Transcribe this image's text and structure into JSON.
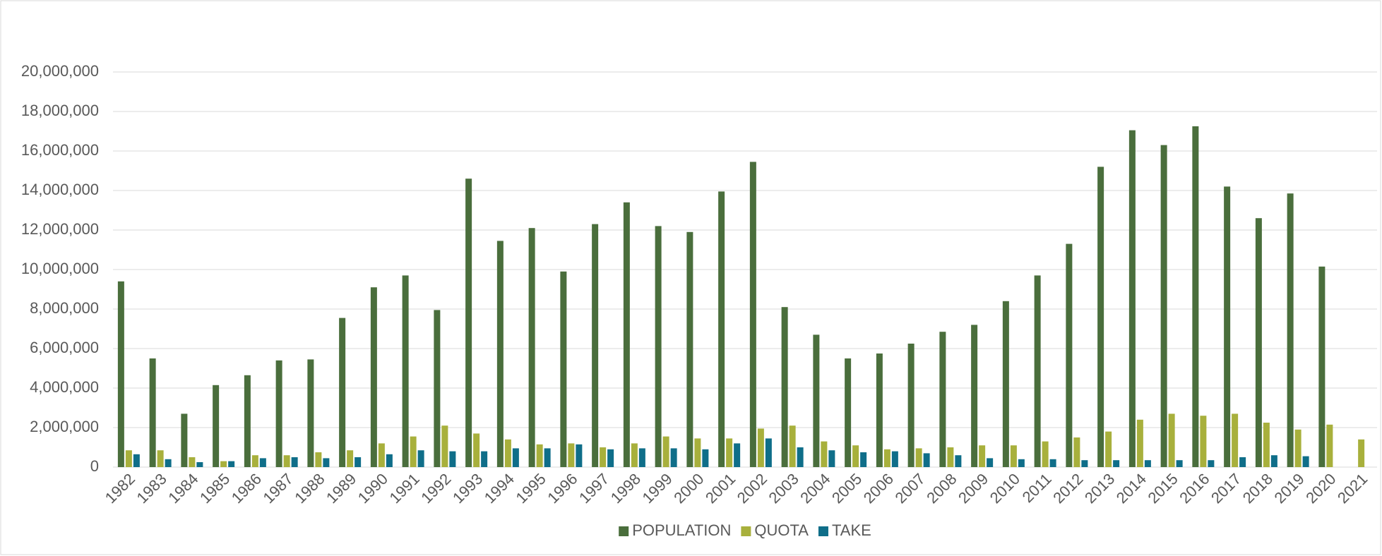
{
  "chart_data": {
    "type": "bar",
    "categories": [
      "1982",
      "1983",
      "1984",
      "1985",
      "1986",
      "1987",
      "1988",
      "1989",
      "1990",
      "1991",
      "1992",
      "1993",
      "1994",
      "1995",
      "1996",
      "1997",
      "1998",
      "1999",
      "2000",
      "2001",
      "2002",
      "2003",
      "2004",
      "2005",
      "2006",
      "2007",
      "2008",
      "2009",
      "2010",
      "2011",
      "2012",
      "2013",
      "2014",
      "2015",
      "2016",
      "2017",
      "2018",
      "2019",
      "2020",
      "2021"
    ],
    "series": [
      {
        "name": "POPULATION",
        "color": "#4a6e3c",
        "values": [
          9400000,
          5500000,
          2700000,
          4150000,
          4650000,
          5400000,
          5450000,
          7550000,
          9100000,
          9700000,
          7950000,
          14600000,
          11450000,
          12100000,
          9900000,
          12300000,
          13400000,
          12200000,
          11900000,
          13950000,
          15450000,
          8100000,
          6700000,
          5500000,
          5750000,
          6250000,
          6850000,
          7200000,
          8400000,
          9700000,
          11300000,
          15200000,
          17050000,
          16300000,
          17250000,
          14200000,
          12600000,
          13850000,
          10150000,
          null
        ]
      },
      {
        "name": "QUOTA",
        "color": "#a8b03c",
        "values": [
          850000,
          850000,
          500000,
          300000,
          600000,
          600000,
          750000,
          850000,
          1200000,
          1550000,
          2100000,
          1700000,
          1400000,
          1150000,
          1200000,
          1000000,
          1200000,
          1550000,
          1450000,
          1450000,
          1950000,
          2100000,
          1300000,
          1100000,
          900000,
          950000,
          1000000,
          1100000,
          1100000,
          1300000,
          1500000,
          1800000,
          2400000,
          2700000,
          2600000,
          2700000,
          2250000,
          1900000,
          2150000,
          1400000
        ]
      },
      {
        "name": "TAKE",
        "color": "#0f6e89",
        "values": [
          650000,
          400000,
          250000,
          300000,
          450000,
          500000,
          450000,
          500000,
          650000,
          850000,
          800000,
          800000,
          950000,
          950000,
          1150000,
          900000,
          950000,
          950000,
          900000,
          1200000,
          1450000,
          1000000,
          850000,
          750000,
          800000,
          700000,
          600000,
          450000,
          400000,
          400000,
          350000,
          350000,
          350000,
          350000,
          350000,
          500000,
          600000,
          550000,
          null,
          null
        ]
      }
    ],
    "ylim": [
      0,
      20000000
    ],
    "yticks": [
      0,
      {
        "value": 2000000,
        "label": "2,000,000"
      },
      {
        "value": 4000000,
        "label": "4,000,000"
      },
      {
        "value": 6000000,
        "label": "6,000,000"
      },
      {
        "value": 8000000,
        "label": "8,000,000"
      },
      {
        "value": 10000000,
        "label": "10,000,000"
      },
      {
        "value": 12000000,
        "label": "12,000,000"
      },
      {
        "value": 14000000,
        "label": "14,000,000"
      },
      {
        "value": 16000000,
        "label": "16,000,000"
      },
      {
        "value": 18000000,
        "label": "18,000,000"
      },
      {
        "value": 20000000,
        "label": "20,000,000"
      }
    ],
    "grid": true,
    "legend": "bottom"
  }
}
